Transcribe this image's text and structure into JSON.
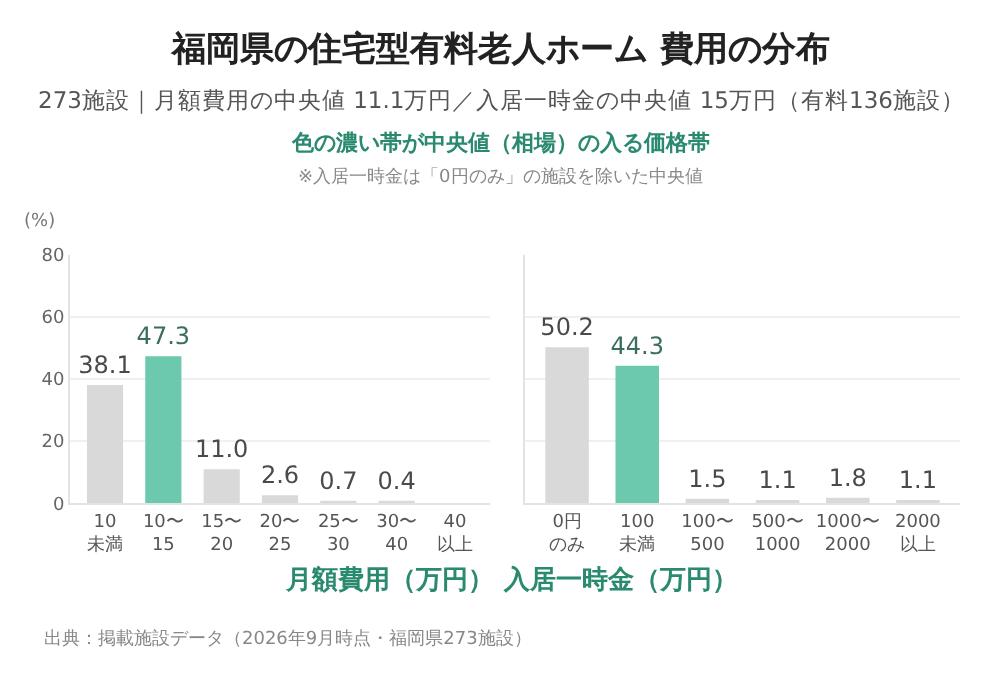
{
  "chart_data": [
    {
      "type": "bar",
      "title": "福岡県の住宅型有料老人ホーム 費用の分布",
      "subtitle": "273施設｜月額費用の中央値 11.1万円／入居一時金の中央値 15万円（有料136施設）",
      "annotations": [
        "色の濃い帯が中央値（相場）の入る価格帯",
        "※入居一時金は「0円のみ」の施設を除いた中央値",
        "出典：掲載施設データ（2026年9月時点・福岡県273施設）"
      ],
      "ylabel": "(%)",
      "xlabel": "月額費用（万円）",
      "categories": [
        "10\n未満",
        "10〜\n15",
        "15〜\n20",
        "20〜\n25",
        "25〜\n30",
        "30〜\n40",
        "40\n以上"
      ],
      "values": [
        38.1,
        47.3,
        11.0,
        2.6,
        0.7,
        0.4,
        0
      ],
      "value_labels": [
        "38.1",
        "47.3",
        "11.0",
        "2.6",
        "0.7",
        "0.4",
        null
      ],
      "colors": [
        "#d9d9d9",
        "#6cc9ae",
        "#d9d9d9",
        "#d9d9d9",
        "#d9d9d9",
        "#d9d9d9",
        "#d9d9d9"
      ],
      "ylim": [
        0,
        80
      ],
      "yticks": [
        0,
        20,
        40,
        60,
        80
      ],
      "grid": "y"
    },
    {
      "type": "bar",
      "xlabel": "入居一時金（万円）",
      "categories": [
        "0円のみ",
        "100\n未満",
        "100〜\n500",
        "500〜\n1000",
        "1000〜\n2000",
        "2000\n以上"
      ],
      "values": [
        50.2,
        44.3,
        1.5,
        1.1,
        1.8,
        1.1
      ],
      "data_labels": true,
      "colors": [
        "#d9d9d9",
        "#6cc9ae",
        "#d9d9d9",
        "#d9d9d9",
        "#d9d9d9",
        "#d9d9d9"
      ],
      "ylim": [
        0,
        80
      ],
      "yticks": [
        0,
        20,
        40,
        60,
        80
      ],
      "grid": "y",
      "tick_labels": "x"
    }
  ]
}
